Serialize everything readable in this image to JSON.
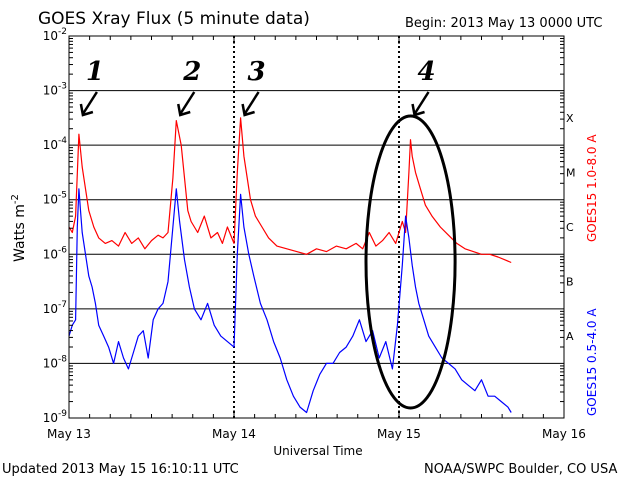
{
  "title": "GOES Xray Flux (5 minute data)",
  "begin_label": "Begin:  2013 May 13 0000 UTC",
  "footer_left": "Updated 2013 May 15 16:10:11 UTC",
  "footer_right": "NOAA/SWPC Boulder, CO USA",
  "colors": {
    "long_channel": "#ff0000",
    "short_channel": "#0000ff",
    "axes": "#000000"
  },
  "chart_data": {
    "type": "line",
    "title": "GOES Xray Flux (5 minute data)",
    "xlabel": "Universal Time",
    "ylabel": "Watts m",
    "ylabel_superscript": "-2",
    "xlim_days": [
      0,
      3
    ],
    "x_ticks": [
      {
        "label": "May 13",
        "day": 0
      },
      {
        "label": "May 14",
        "day": 1
      },
      {
        "label": "May 15",
        "day": 2
      },
      {
        "label": "May 16",
        "day": 3
      }
    ],
    "yscale": "log",
    "ylim_exp": [
      -9,
      -2
    ],
    "y_tick_exponents": [
      -2,
      -3,
      -4,
      -5,
      -6,
      -7,
      -8,
      -9
    ],
    "flare_classes": [
      "X",
      "M",
      "C",
      "B",
      "A"
    ],
    "grid": "horizontal",
    "series": [
      {
        "name": "GOES15 1.0-8.0 A",
        "color": "#ff0000",
        "x_day": [
          0.0,
          0.02,
          0.04,
          0.06,
          0.08,
          0.1,
          0.12,
          0.15,
          0.18,
          0.22,
          0.26,
          0.3,
          0.34,
          0.38,
          0.42,
          0.46,
          0.5,
          0.54,
          0.57,
          0.6,
          0.63,
          0.65,
          0.68,
          0.7,
          0.72,
          0.74,
          0.78,
          0.82,
          0.86,
          0.9,
          0.93,
          0.96,
          1.0,
          1.02,
          1.04,
          1.06,
          1.08,
          1.1,
          1.13,
          1.17,
          1.21,
          1.26,
          1.32,
          1.38,
          1.44,
          1.5,
          1.56,
          1.62,
          1.68,
          1.74,
          1.78,
          1.82,
          1.86,
          1.9,
          1.94,
          1.98,
          2.02,
          2.04,
          2.06,
          2.07,
          2.08,
          2.1,
          2.13,
          2.16,
          2.2,
          2.25,
          2.3,
          2.35,
          2.4,
          2.45,
          2.5,
          2.55,
          2.6,
          2.64,
          2.68
        ],
        "y_exp": [
          -5.5,
          -5.6,
          -5.3,
          -3.8,
          -4.4,
          -4.8,
          -5.2,
          -5.5,
          -5.7,
          -5.8,
          -5.75,
          -5.85,
          -5.6,
          -5.8,
          -5.7,
          -5.9,
          -5.75,
          -5.65,
          -5.7,
          -5.6,
          -4.6,
          -3.55,
          -4.0,
          -4.6,
          -5.2,
          -5.4,
          -5.6,
          -5.3,
          -5.7,
          -5.6,
          -5.8,
          -5.5,
          -5.8,
          -4.5,
          -3.5,
          -4.2,
          -4.6,
          -5.0,
          -5.3,
          -5.5,
          -5.7,
          -5.85,
          -5.9,
          -5.95,
          -6.0,
          -5.9,
          -5.95,
          -5.85,
          -5.9,
          -5.8,
          -5.9,
          -5.6,
          -5.85,
          -5.75,
          -5.6,
          -5.8,
          -5.4,
          -5.6,
          -4.5,
          -3.9,
          -4.2,
          -4.5,
          -4.8,
          -5.1,
          -5.3,
          -5.5,
          -5.65,
          -5.8,
          -5.9,
          -5.95,
          -6.0,
          -6.0,
          -6.05,
          -6.1,
          -6.15
        ]
      },
      {
        "name": "GOES15 0.5-4.0 A",
        "color": "#0000ff",
        "x_day": [
          0.0,
          0.02,
          0.04,
          0.05,
          0.06,
          0.07,
          0.08,
          0.1,
          0.12,
          0.14,
          0.16,
          0.18,
          0.21,
          0.24,
          0.27,
          0.3,
          0.33,
          0.36,
          0.39,
          0.42,
          0.45,
          0.48,
          0.51,
          0.54,
          0.57,
          0.6,
          0.63,
          0.65,
          0.67,
          0.7,
          0.73,
          0.76,
          0.8,
          0.84,
          0.88,
          0.92,
          0.96,
          1.0,
          1.02,
          1.04,
          1.06,
          1.09,
          1.12,
          1.16,
          1.2,
          1.24,
          1.28,
          1.32,
          1.36,
          1.4,
          1.44,
          1.48,
          1.52,
          1.56,
          1.6,
          1.64,
          1.68,
          1.72,
          1.76,
          1.8,
          1.84,
          1.88,
          1.92,
          1.96,
          1.99,
          2.02,
          2.04,
          2.06,
          2.08,
          2.1,
          2.12,
          2.15,
          2.18,
          2.22,
          2.26,
          2.3,
          2.34,
          2.38,
          2.42,
          2.46,
          2.5,
          2.54,
          2.58,
          2.62,
          2.66,
          2.68
        ],
        "y_exp": [
          -7.5,
          -7.3,
          -7.2,
          -5.5,
          -4.8,
          -5.2,
          -5.6,
          -6.0,
          -6.4,
          -6.6,
          -6.9,
          -7.3,
          -7.5,
          -7.7,
          -8.0,
          -7.6,
          -7.9,
          -8.1,
          -7.8,
          -7.5,
          -7.4,
          -7.9,
          -7.2,
          -7.0,
          -6.9,
          -6.5,
          -5.5,
          -4.8,
          -5.4,
          -6.1,
          -6.6,
          -7.0,
          -7.2,
          -6.9,
          -7.3,
          -7.5,
          -7.6,
          -7.7,
          -6.0,
          -4.9,
          -5.5,
          -6.0,
          -6.4,
          -6.9,
          -7.2,
          -7.6,
          -7.9,
          -8.3,
          -8.6,
          -8.8,
          -8.9,
          -8.5,
          -8.2,
          -8.0,
          -8.0,
          -7.8,
          -7.7,
          -7.5,
          -7.2,
          -7.6,
          -7.4,
          -7.9,
          -7.6,
          -8.1,
          -7.3,
          -6.2,
          -5.3,
          -5.7,
          -6.2,
          -6.6,
          -6.9,
          -7.2,
          -7.5,
          -7.7,
          -7.9,
          -8.0,
          -8.1,
          -8.3,
          -8.4,
          -8.5,
          -8.3,
          -8.6,
          -8.6,
          -8.7,
          -8.8,
          -8.9
        ]
      }
    ],
    "annotations": [
      {
        "label": "1",
        "day": 0.06
      },
      {
        "label": "2",
        "day": 0.65
      },
      {
        "label": "3",
        "day": 1.04
      },
      {
        "label": "4",
        "day": 2.07
      }
    ],
    "highlight_ellipse_day_range": [
      1.8,
      2.34
    ]
  }
}
